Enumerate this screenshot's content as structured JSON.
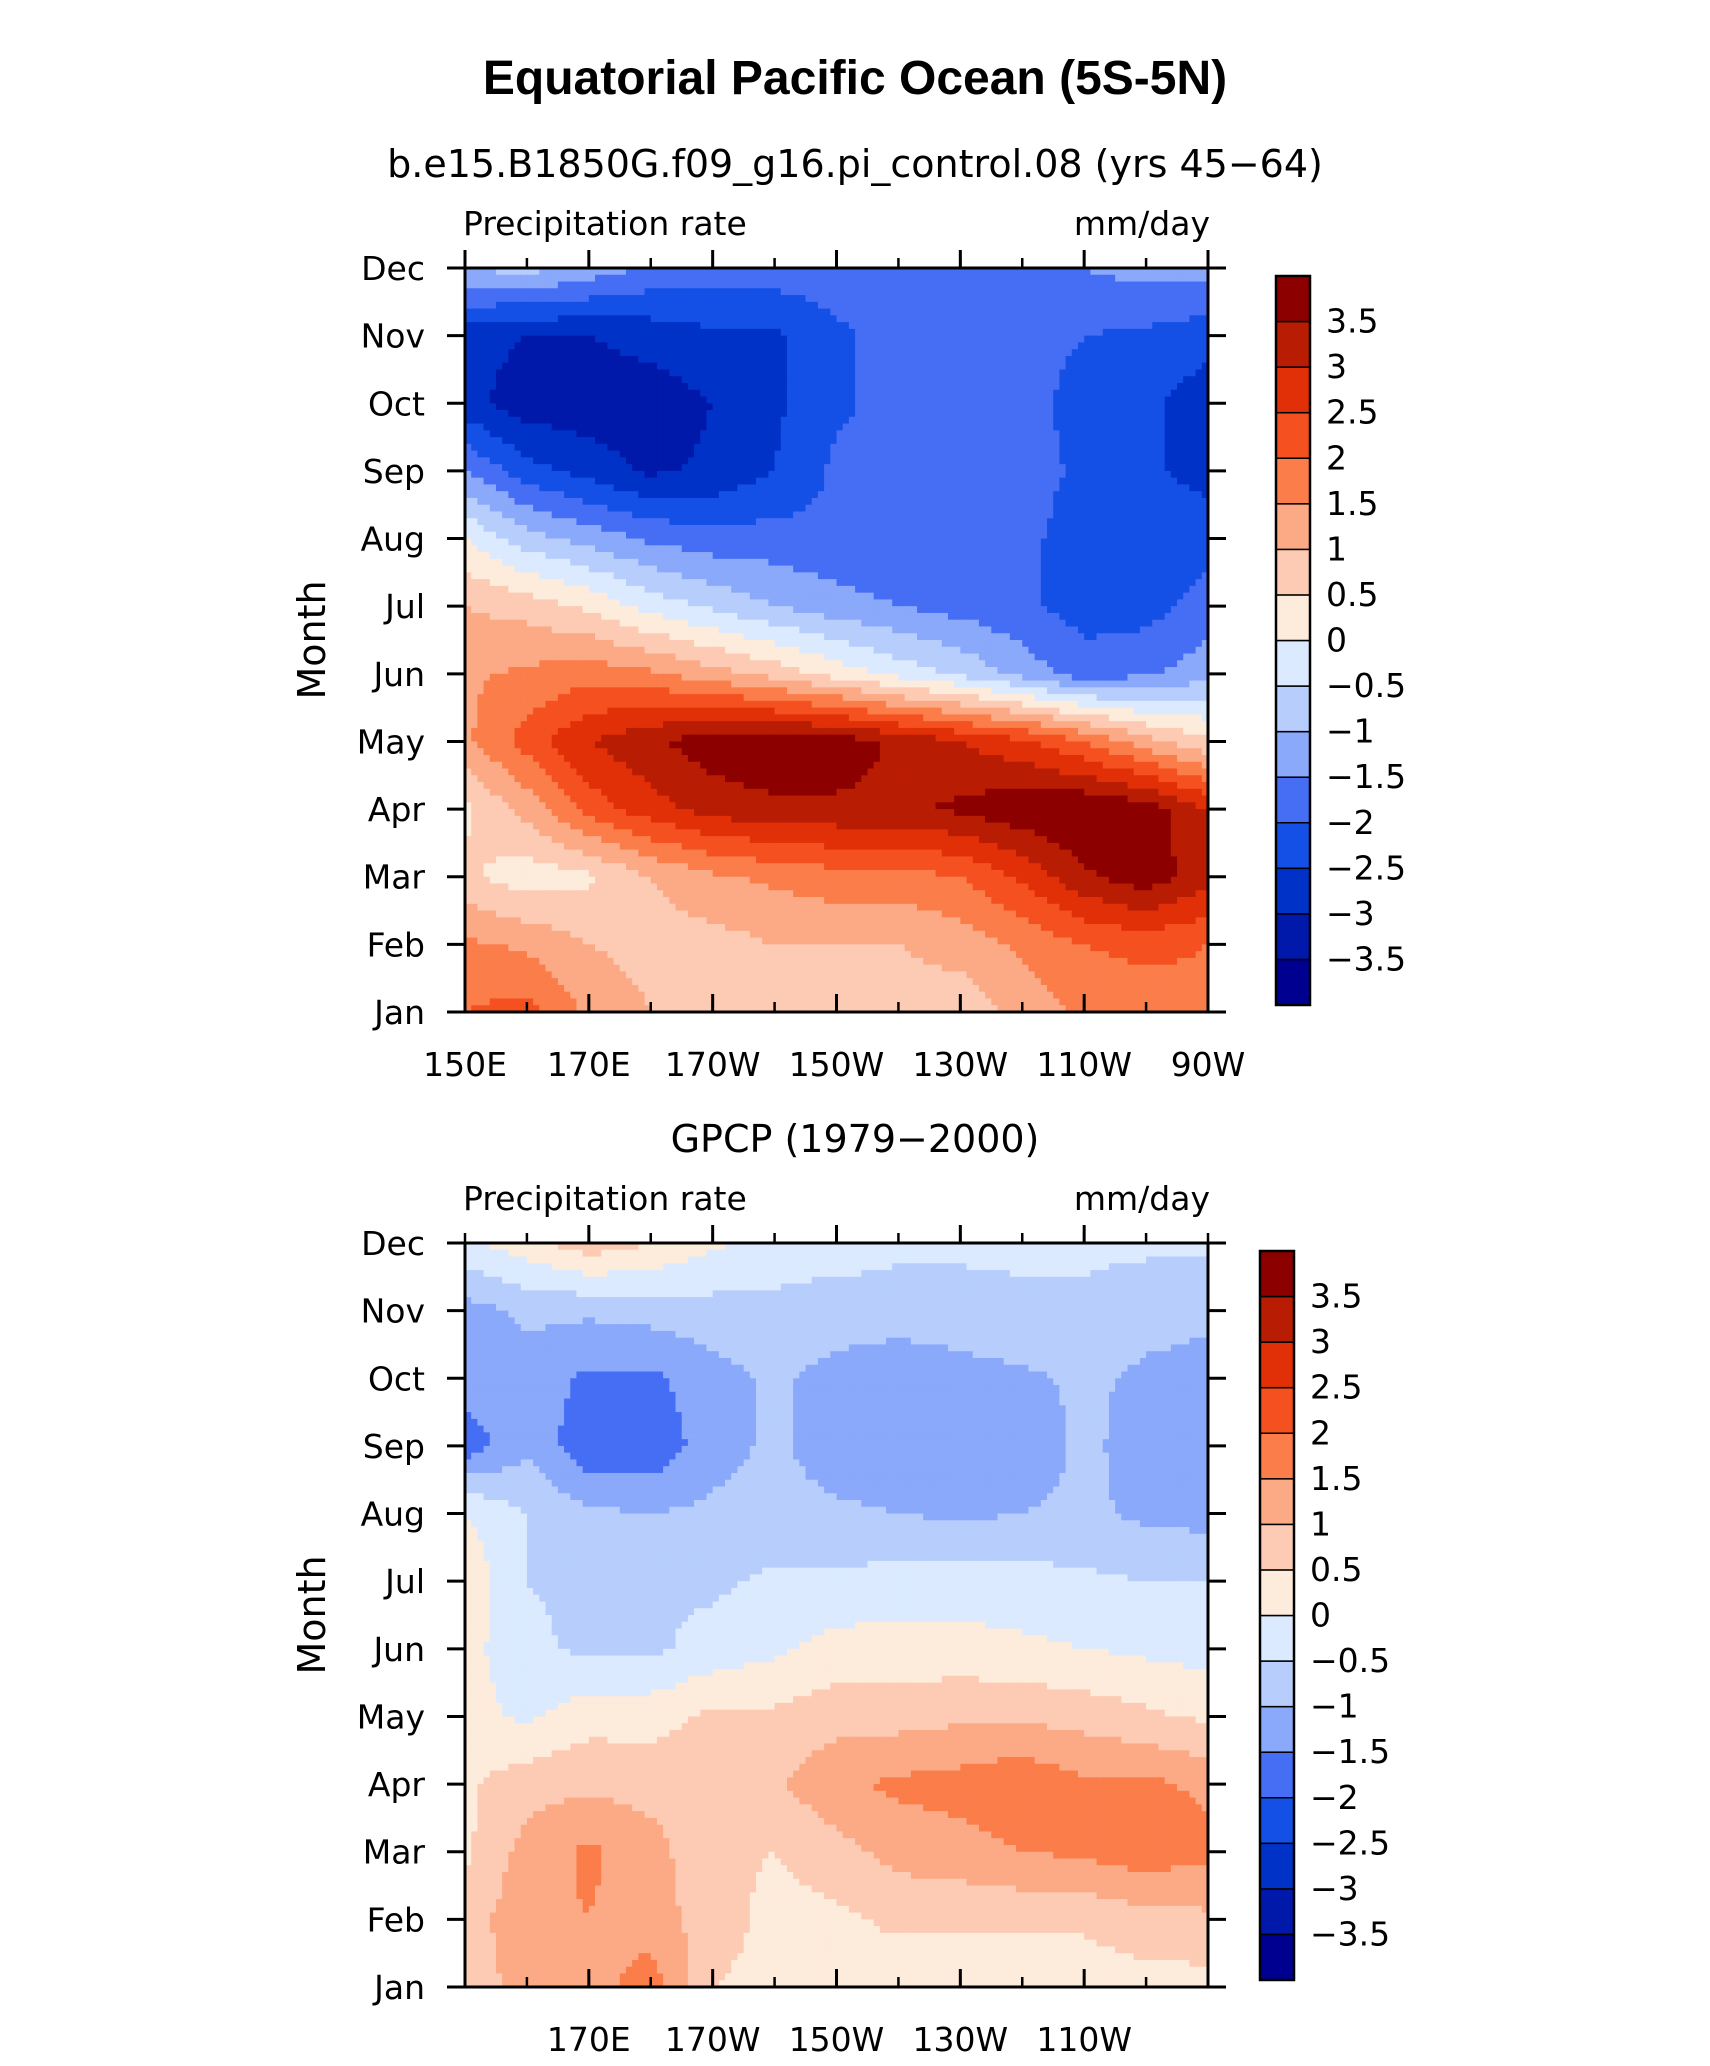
{
  "title": "Equatorial Pacific Ocean (5S-5N)",
  "colors": {
    "levels": [
      "#000090",
      "#0019aa",
      "#0032c8",
      "#1450e6",
      "#466ef5",
      "#8aa9fa",
      "#b7cefd",
      "#dbeafe",
      "#fdebdb",
      "#fdcbb4",
      "#fcaa86",
      "#fa7d4a",
      "#f55020",
      "#e13008",
      "#b81c02",
      "#8c0000"
    ],
    "axis": "#000000"
  },
  "colorbar_labels": [
    "3.5",
    "3",
    "2.5",
    "2",
    "1.5",
    "1",
    "0.5",
    "0",
    "−0.5",
    "−1",
    "−1.5",
    "−2",
    "−2.5",
    "−3",
    "−3.5"
  ],
  "chart_data": [
    {
      "type": "heatmap",
      "title": "b.e15.B1850G.f09_g16.pi_control.08 (yrs 45−64)",
      "left_label": "Precipitation rate",
      "right_label": "mm/day",
      "ylabel": "Month",
      "y": [
        "Dec",
        "Nov",
        "Oct",
        "Sep",
        "Aug",
        "Jul",
        "Jun",
        "May",
        "Apr",
        "Mar",
        "Feb",
        "Jan"
      ],
      "x": [
        "150E",
        "170E",
        "170W",
        "150W",
        "130W",
        "110W",
        "90W"
      ],
      "x_range": [
        150,
        270
      ],
      "contour_levels": [
        -3.5,
        -3,
        -2.5,
        -2,
        -1.5,
        -1,
        -0.5,
        0,
        0.5,
        1,
        1.5,
        2,
        2.5,
        3,
        3.5
      ],
      "colorbar_range": [
        -4,
        4
      ],
      "z_months": [
        "Jan",
        "Feb",
        "Mar",
        "Apr",
        "May",
        "Jun",
        "Jul",
        "Aug",
        "Sep",
        "Oct",
        "Nov",
        "Dec"
      ],
      "z_lon": [
        150,
        160,
        170,
        180,
        190,
        200,
        210,
        220,
        230,
        240,
        250,
        260,
        270
      ],
      "z": [
        [
          2.0,
          2.2,
          1.4,
          1.0,
          0.8,
          0.8,
          0.8,
          0.8,
          0.7,
          1.2,
          1.6,
          1.6,
          1.8
        ],
        [
          1.6,
          1.4,
          1.0,
          0.8,
          0.8,
          1.0,
          1.0,
          1.0,
          1.2,
          1.6,
          2.0,
          2.2,
          2.0
        ],
        [
          0.6,
          0.2,
          0.4,
          1.0,
          1.4,
          1.6,
          1.8,
          1.8,
          2.0,
          2.6,
          3.4,
          3.8,
          3.2
        ],
        [
          0.4,
          1.2,
          2.2,
          2.8,
          3.2,
          3.4,
          3.4,
          3.4,
          3.6,
          3.9,
          4.0,
          3.8,
          3.0
        ],
        [
          1.4,
          2.2,
          3.0,
          3.4,
          3.8,
          3.9,
          3.8,
          3.4,
          3.0,
          2.6,
          2.0,
          1.2,
          0.6
        ],
        [
          1.4,
          1.6,
          1.8,
          1.6,
          1.2,
          0.8,
          0.3,
          -0.2,
          -0.6,
          -1.2,
          -1.8,
          -1.6,
          -1.2
        ],
        [
          1.0,
          0.8,
          0.4,
          -0.2,
          -0.6,
          -1.0,
          -1.3,
          -1.5,
          -1.7,
          -1.9,
          -2.2,
          -2.2,
          -1.8
        ],
        [
          0.0,
          -0.8,
          -1.2,
          -1.6,
          -1.8,
          -1.8,
          -1.9,
          -1.9,
          -1.9,
          -1.9,
          -2.2,
          -2.2,
          -2.2
        ],
        [
          -1.5,
          -2.3,
          -2.7,
          -3.1,
          -2.9,
          -2.5,
          -1.9,
          -1.8,
          -1.8,
          -1.8,
          -2.1,
          -2.4,
          -2.7
        ],
        [
          -2.8,
          -3.3,
          -3.3,
          -3.3,
          -3.0,
          -2.6,
          -2.1,
          -1.8,
          -1.8,
          -1.8,
          -2.2,
          -2.4,
          -2.8
        ],
        [
          -2.8,
          -3.0,
          -3.0,
          -2.8,
          -2.6,
          -2.6,
          -2.1,
          -1.8,
          -1.8,
          -1.8,
          -2.0,
          -2.1,
          -2.3
        ],
        [
          -1.0,
          -0.8,
          -1.2,
          -1.6,
          -1.7,
          -1.7,
          -1.7,
          -1.7,
          -1.7,
          -1.6,
          -1.5,
          -1.3,
          -1.3
        ]
      ]
    },
    {
      "type": "heatmap",
      "title": "GPCP (1979−2000)",
      "left_label": "Precipitation rate",
      "right_label": "mm/day",
      "ylabel": "Month",
      "y": [
        "Dec",
        "Nov",
        "Oct",
        "Sep",
        "Aug",
        "Jul",
        "Jun",
        "May",
        "Apr",
        "Mar",
        "Feb",
        "Jan"
      ],
      "x": [
        "170E",
        "170W",
        "150W",
        "130W",
        "110W"
      ],
      "x_range": [
        150,
        270
      ],
      "contour_levels": [
        -3.5,
        -3,
        -2.5,
        -2,
        -1.5,
        -1,
        -0.5,
        0,
        0.5,
        1,
        1.5,
        2,
        2.5,
        3,
        3.5
      ],
      "colorbar_range": [
        -4,
        4
      ],
      "z_months": [
        "Jan",
        "Feb",
        "Mar",
        "Apr",
        "May",
        "Jun",
        "Jul",
        "Aug",
        "Sep",
        "Oct",
        "Nov",
        "Dec"
      ],
      "z_lon": [
        150,
        160,
        170,
        180,
        190,
        200,
        210,
        220,
        230,
        240,
        250,
        260,
        270
      ],
      "z": [
        [
          0.7,
          1.2,
          1.2,
          1.8,
          0.5,
          0.3,
          0.3,
          0.2,
          0.2,
          0.1,
          0.2,
          0.3,
          0.3
        ],
        [
          0.7,
          1.4,
          1.5,
          1.2,
          0.8,
          0.3,
          0.4,
          0.6,
          0.6,
          0.6,
          0.6,
          0.8,
          0.9
        ],
        [
          0.4,
          1.2,
          1.6,
          1.2,
          0.6,
          0.5,
          0.8,
          1.2,
          1.3,
          1.5,
          1.6,
          1.8,
          1.6
        ],
        [
          0.4,
          0.8,
          0.9,
          0.8,
          0.8,
          0.9,
          1.4,
          1.6,
          1.7,
          1.9,
          1.6,
          1.6,
          1.4
        ],
        [
          0.2,
          -0.1,
          0.3,
          0.3,
          0.6,
          0.6,
          0.8,
          0.8,
          0.9,
          0.9,
          0.8,
          0.6,
          0.4
        ],
        [
          0.2,
          -0.4,
          -0.6,
          -0.6,
          -0.3,
          -0.1,
          0.2,
          0.2,
          0.2,
          0.1,
          0.0,
          -0.1,
          -0.2
        ],
        [
          0.4,
          -0.5,
          -0.6,
          -0.6,
          -0.6,
          -0.4,
          -0.4,
          -0.3,
          -0.3,
          -0.3,
          -0.4,
          -0.5,
          -0.5
        ],
        [
          0.0,
          -0.5,
          -0.9,
          -1.0,
          -0.9,
          -0.8,
          -0.9,
          -1.0,
          -1.1,
          -1.0,
          -0.9,
          -1.1,
          -1.2
        ],
        [
          -1.8,
          -1.1,
          -1.9,
          -1.9,
          -1.2,
          -0.9,
          -1.3,
          -1.4,
          -1.4,
          -1.3,
          -0.9,
          -1.2,
          -1.3
        ],
        [
          -1.2,
          -1.2,
          -1.6,
          -1.6,
          -1.2,
          -0.9,
          -1.2,
          -1.4,
          -1.2,
          -1.1,
          -0.9,
          -1.1,
          -1.2
        ],
        [
          -1.2,
          -0.9,
          -0.9,
          -0.8,
          -0.7,
          -0.6,
          -0.7,
          -0.7,
          -0.7,
          -0.6,
          -0.6,
          -0.8,
          -0.9
        ],
        [
          -0.1,
          0.3,
          0.8,
          0.5,
          0.1,
          -0.3,
          -0.3,
          -0.4,
          -0.4,
          -0.4,
          -0.4,
          -0.4,
          -0.4
        ]
      ]
    }
  ]
}
